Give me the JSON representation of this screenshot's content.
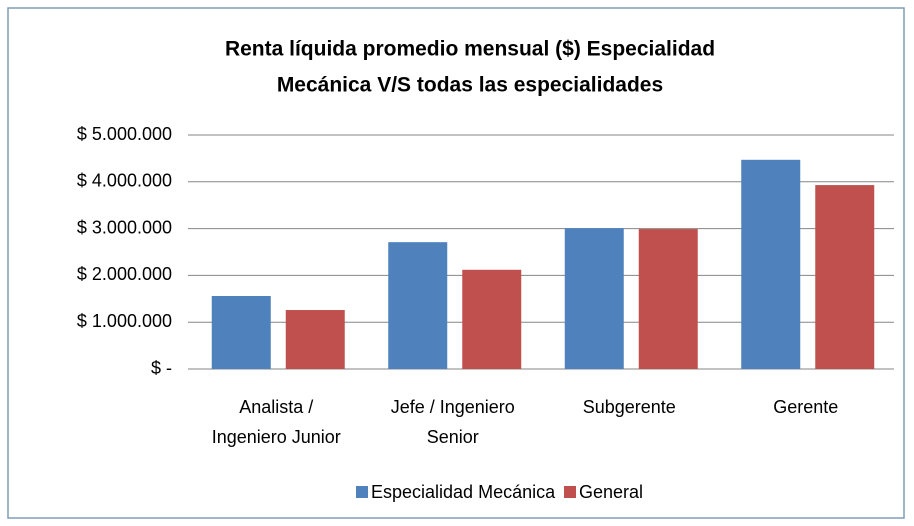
{
  "chart_data": {
    "type": "bar",
    "title": [
      "Renta líquida promedio mensual ($) Especialidad",
      "Mecánica V/S todas las especialidades"
    ],
    "categories": [
      [
        "Analista /",
        "Ingeniero Junior"
      ],
      [
        "Jefe / Ingeniero",
        "Senior"
      ],
      [
        "Subgerente"
      ],
      [
        "Gerente"
      ]
    ],
    "series": [
      {
        "name": "Especialidad Mecánica",
        "color": "#4f81bd",
        "values": [
          1560000,
          2710000,
          3010000,
          4470000
        ]
      },
      {
        "name": "General",
        "color": "#c0504d",
        "values": [
          1260000,
          2120000,
          2990000,
          3930000
        ]
      }
    ],
    "ylim": [
      0,
      5000000
    ],
    "yticks": [
      {
        "value": 0,
        "label": "$ -"
      },
      {
        "value": 1000000,
        "label": "$ 1.000.000"
      },
      {
        "value": 2000000,
        "label": "$ 2.000.000"
      },
      {
        "value": 3000000,
        "label": "$ 3.000.000"
      },
      {
        "value": 4000000,
        "label": "$ 4.000.000"
      },
      {
        "value": 5000000,
        "label": "$ 5.000.000"
      }
    ],
    "grid": true,
    "legend": "bottom"
  }
}
